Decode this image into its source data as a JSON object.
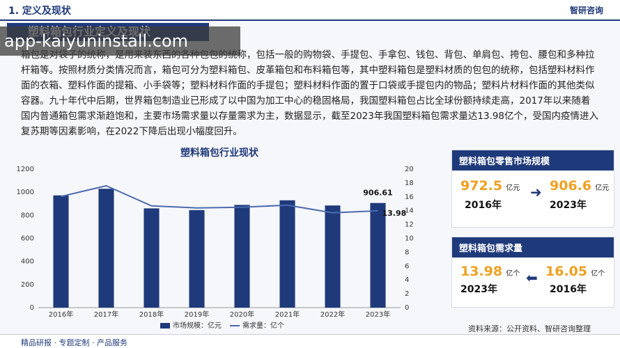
{
  "header": {
    "section": "1. 定义及现状",
    "logo": "智研咨询"
  },
  "banner": "塑料箱包行业定义及现状",
  "watermark": "app-kaiyuninstall.com",
  "paragraph": "箱包是对袋子的统称，是用来装东西的各种包包的统称，包括一般的购物袋、手提包、手拿包、钱包、背包、单肩包、挎包、腰包和多种拉杆箱等。按照材质分类情况而言，箱包可分为塑料箱包、皮革箱包和布料箱包等，其中塑料箱包是塑料材质的包包的统称，包括塑料材料作面的衣箱、塑料作面的提箱、小手袋等；塑料材料作面的手提包；塑料材料作面的置于口袋或手提包内的物品；塑料片材料作面的其他类似容器。九十年代中后期，世界箱包制造业已形成了以中国为加工中心的稳固格局，我国塑料箱包占比全球份额持续走高，2017年以来随着国内普通箱包需求渐趋饱和，主要市场需求量以存量需求为主，数据显示，截至2023年我国塑料箱包需求量达13.98亿个，受国内疫情进入复苏期等因素影响，在2022下降后出现小幅度回升。",
  "chart_data": {
    "type": "bar",
    "title": "塑料箱包行业现状",
    "categories": [
      "2016年",
      "2017年",
      "2018年",
      "2019年",
      "2020年",
      "2021年",
      "2022年",
      "2023年"
    ],
    "series": [
      {
        "name": "市场规模：亿元",
        "type": "bar",
        "color": "#1f3a7a",
        "values": [
          972.5,
          1030,
          860,
          845,
          890,
          930,
          885,
          906.61
        ]
      },
      {
        "name": "需求量：亿个",
        "type": "line",
        "axis": "y2",
        "color": "#4a6ab0",
        "values": [
          16.05,
          17.6,
          14.7,
          14.4,
          14.5,
          14.8,
          13.7,
          13.98
        ]
      }
    ],
    "ylim": [
      0,
      1200
    ],
    "yticks": [
      0,
      200,
      400,
      600,
      800,
      1000,
      1200
    ],
    "y2lim": [
      0,
      20
    ],
    "y2ticks": [
      0,
      2,
      4,
      6,
      8,
      10,
      12,
      14,
      16,
      18,
      20
    ],
    "legend": "bottom"
  },
  "cards": [
    {
      "title": "塑料箱包零售市场规模",
      "items": [
        {
          "value": "972.5",
          "unit": "亿元",
          "year": "2016年"
        },
        {
          "value": "906.6",
          "unit": "亿元",
          "year": "2023年"
        }
      ]
    },
    {
      "title": "塑料箱包需求量",
      "items": [
        {
          "value": "13.98",
          "unit": "亿个",
          "year": "2023年"
        },
        {
          "value": "16.05",
          "unit": "亿个",
          "year": "2016年"
        }
      ]
    }
  ],
  "footer": {
    "left": "精品研报 · 专题定制 · 产品服务",
    "right": "资料来源：公开资料、智研咨询整理"
  }
}
